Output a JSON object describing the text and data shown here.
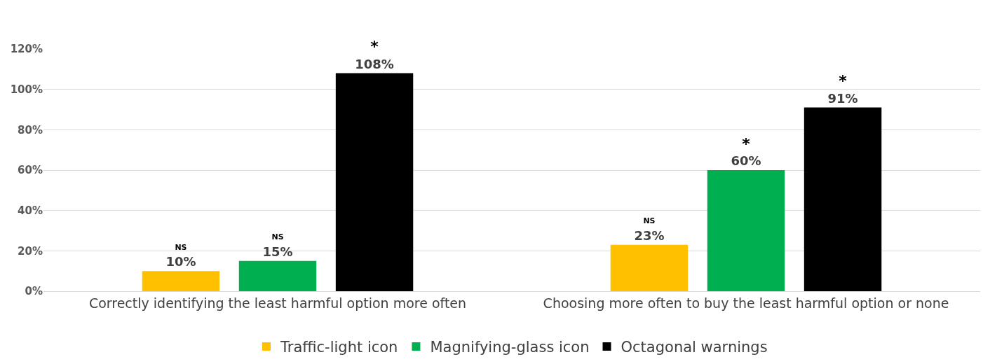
{
  "chart_data": {
    "type": "bar",
    "categories": [
      "Correctly identifying the least harmful option more often",
      "Choosing more often to buy the least harmful option or none"
    ],
    "series": [
      {
        "name": "Traffic-light icon",
        "color": "#ffc000",
        "values": [
          10,
          23
        ],
        "value_labels": [
          "NS\n10%",
          "NS\n23%"
        ]
      },
      {
        "name": "Magnifying-glass icon",
        "color": "#00b050",
        "values": [
          15,
          60
        ],
        "value_labels": [
          "NS\n15%",
          "*\n60%"
        ]
      },
      {
        "name": "Octagonal warnings",
        "color": "#000000",
        "values": [
          108,
          91
        ],
        "value_labels": [
          "*\n108%",
          "*\n91%"
        ]
      }
    ],
    "ylim": [
      0,
      120
    ],
    "yticks": [
      {
        "value": 0,
        "label": "0%"
      },
      {
        "value": 20,
        "label": "20%"
      },
      {
        "value": 40,
        "label": "40%"
      },
      {
        "value": 60,
        "label": "60%"
      },
      {
        "value": 80,
        "label": "80%"
      },
      {
        "value": 100,
        "label": "100%"
      },
      {
        "value": 120,
        "label": "120%"
      }
    ],
    "grid": "y",
    "legend": "bottom"
  }
}
